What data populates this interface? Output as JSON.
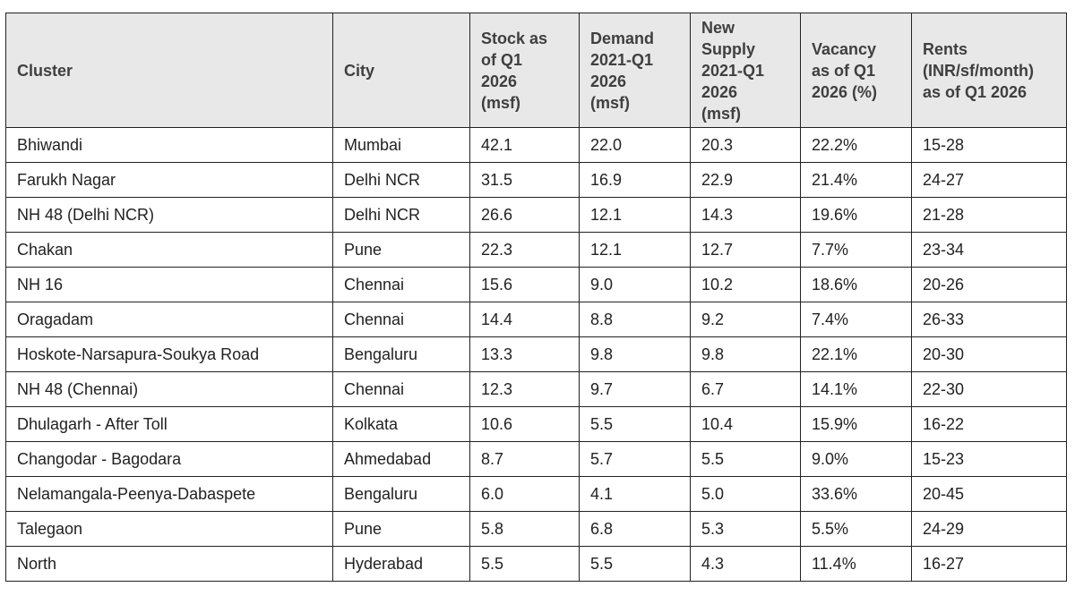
{
  "table": {
    "headers": [
      "Cluster",
      "City",
      "Stock as\nof Q1\n2026\n(msf)",
      "Demand\n2021-Q1\n2026\n(msf)",
      "New\nSupply\n2021-Q1\n2026\n(msf)",
      "Vacancy\nas of Q1\n2026 (%)",
      "Rents\n(INR/sf/month)\nas of Q1 2026"
    ],
    "rows": [
      [
        "Bhiwandi",
        "Mumbai",
        "42.1",
        "22.0",
        "20.3",
        "22.2%",
        "15-28"
      ],
      [
        "Farukh Nagar",
        "Delhi NCR",
        "31.5",
        "16.9",
        "22.9",
        "21.4%",
        "24-27"
      ],
      [
        "NH 48 (Delhi NCR)",
        "Delhi NCR",
        "26.6",
        "12.1",
        "14.3",
        "19.6%",
        "21-28"
      ],
      [
        "Chakan",
        "Pune",
        "22.3",
        "12.1",
        "12.7",
        "7.7%",
        "23-34"
      ],
      [
        "NH 16",
        "Chennai",
        "15.6",
        "9.0",
        "10.2",
        "18.6%",
        "20-26"
      ],
      [
        "Oragadam",
        "Chennai",
        "14.4",
        "8.8",
        "9.2",
        "7.4%",
        "26-33"
      ],
      [
        "Hoskote-Narsapura-Soukya Road",
        "Bengaluru",
        "13.3",
        "9.8",
        "9.8",
        "22.1%",
        "20-30"
      ],
      [
        "NH 48 (Chennai)",
        "Chennai",
        "12.3",
        "9.7",
        "6.7",
        "14.1%",
        "22-30"
      ],
      [
        "Dhulagarh - After Toll",
        "Kolkata",
        "10.6",
        "5.5",
        "10.4",
        "15.9%",
        "16-22"
      ],
      [
        "Changodar - Bagodara",
        "Ahmedabad",
        "8.7",
        "5.7",
        "5.5",
        "9.0%",
        "15-23"
      ],
      [
        "Nelamangala-Peenya-Dabaspete",
        "Bengaluru",
        "6.0",
        "4.1",
        "5.0",
        "33.6%",
        "20-45"
      ],
      [
        "Talegaon",
        "Pune",
        "5.8",
        "6.8",
        "5.3",
        "5.5%",
        "24-29"
      ],
      [
        "North",
        "Hyderabad",
        "5.5",
        "5.5",
        "4.3",
        "11.4%",
        "16-27"
      ]
    ]
  }
}
